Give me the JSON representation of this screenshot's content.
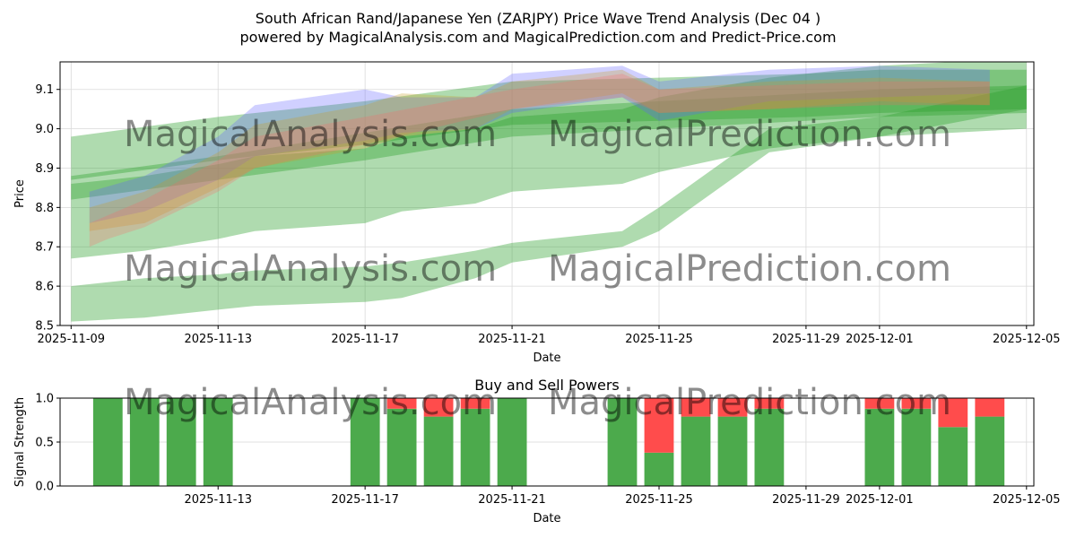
{
  "title_line1": "South African Rand/Japanese Yen (ZARJPY) Price Wave Trend Analysis (Dec 04 )",
  "title_line2": "powered by MagicalAnalysis.com and MagicalPrediction.com and Predict-Price.com",
  "watermarks": [
    "MagicalAnalysis.com",
    "MagicalPrediction.com",
    "MagicalAnalysis.com",
    "MagicalPrediction.com",
    "MagicalAnalysis.com",
    "MagicalPrediction.com"
  ],
  "colors": {
    "green_band": "#2ca02c",
    "blue_band": "#6464ff",
    "orange_band": "#c8a028",
    "red_band": "#ff6464",
    "buy": "#4caa4c",
    "sell": "#ff4c4c",
    "grid": "#d9d9d9"
  },
  "chart_data": [
    {
      "type": "area",
      "title": "",
      "xlabel": "Date",
      "ylabel": "Price",
      "xlim": [
        -0.3,
        26.2
      ],
      "ylim": [
        8.5,
        9.17
      ],
      "xticks": [
        {
          "pos": 0,
          "label": "2025-11-09"
        },
        {
          "pos": 4,
          "label": "2025-11-13"
        },
        {
          "pos": 8,
          "label": "2025-11-17"
        },
        {
          "pos": 12,
          "label": "2025-11-21"
        },
        {
          "pos": 16,
          "label": "2025-11-25"
        },
        {
          "pos": 20,
          "label": "2025-11-29"
        },
        {
          "pos": 22,
          "label": "2025-12-01"
        },
        {
          "pos": 26,
          "label": "2025-12-05"
        }
      ],
      "yticks": [
        {
          "value": 8.5,
          "label": "8.5"
        },
        {
          "value": 8.6,
          "label": "8.6"
        },
        {
          "value": 8.7,
          "label": "8.7"
        },
        {
          "value": 8.8,
          "label": "8.8"
        },
        {
          "value": 8.9,
          "label": "8.9"
        },
        {
          "value": 9.0,
          "label": "9.0"
        },
        {
          "value": 9.1,
          "label": "9.1"
        }
      ],
      "grid": true,
      "bands": [
        {
          "color": "green",
          "opacity": 0.38,
          "x": [
            0,
            2,
            4,
            5,
            8,
            9,
            11,
            12,
            15,
            16,
            19,
            22,
            26
          ],
          "lower": [
            8.51,
            8.52,
            8.54,
            8.55,
            8.56,
            8.57,
            8.62,
            8.66,
            8.7,
            8.74,
            8.94,
            8.98,
            9.05
          ],
          "upper": [
            8.6,
            8.62,
            8.63,
            8.64,
            8.65,
            8.66,
            8.69,
            8.71,
            8.74,
            8.8,
            9.0,
            9.03,
            9.11
          ]
        },
        {
          "color": "green",
          "opacity": 0.38,
          "x": [
            0,
            2,
            4,
            5,
            8,
            9,
            11,
            12,
            15,
            16,
            19,
            22,
            26
          ],
          "lower": [
            8.67,
            8.69,
            8.72,
            8.74,
            8.76,
            8.79,
            8.81,
            8.84,
            8.86,
            8.89,
            8.95,
            8.98,
            9.0
          ],
          "upper": [
            8.86,
            8.88,
            8.91,
            8.93,
            8.95,
            8.98,
            9.0,
            9.03,
            9.05,
            9.08,
            9.13,
            9.16,
            9.18
          ]
        },
        {
          "color": "green",
          "opacity": 0.38,
          "x": [
            0,
            4,
            8,
            12,
            16,
            20,
            22,
            26
          ],
          "lower": [
            8.87,
            8.92,
            8.96,
            9.01,
            9.02,
            9.03,
            9.04,
            9.05
          ],
          "upper": [
            8.98,
            9.03,
            9.07,
            9.12,
            9.13,
            9.14,
            9.15,
            9.15
          ]
        },
        {
          "color": "green",
          "opacity": 0.38,
          "x": [
            0,
            4,
            8,
            12,
            16,
            20,
            22,
            26
          ],
          "lower": [
            8.82,
            8.87,
            8.92,
            8.98,
            9.0,
            9.02,
            9.03,
            9.04
          ],
          "upper": [
            8.88,
            8.93,
            8.99,
            9.05,
            9.07,
            9.09,
            9.1,
            9.11
          ]
        },
        {
          "color": "blue",
          "opacity": 0.3,
          "x": [
            0.5,
            2,
            4,
            5,
            8,
            9,
            11,
            12,
            15,
            16,
            19,
            22,
            25
          ],
          "lower": [
            8.76,
            8.79,
            8.87,
            8.93,
            8.97,
            8.99,
            9.0,
            9.04,
            9.08,
            9.02,
            9.07,
            9.08,
            9.09
          ],
          "upper": [
            8.84,
            8.88,
            8.98,
            9.06,
            9.1,
            9.08,
            9.08,
            9.14,
            9.16,
            9.12,
            9.15,
            9.16,
            9.15
          ]
        },
        {
          "color": "orange",
          "opacity": 0.3,
          "x": [
            0.5,
            2,
            4,
            5,
            8,
            9,
            11,
            12,
            15,
            16,
            19,
            22,
            25
          ],
          "lower": [
            8.74,
            8.76,
            8.85,
            8.9,
            8.95,
            8.98,
            9.0,
            9.05,
            9.09,
            9.04,
            9.05,
            9.07,
            9.06
          ],
          "upper": [
            8.8,
            8.84,
            8.94,
            9.01,
            9.06,
            9.09,
            9.08,
            9.12,
            9.15,
            9.1,
            9.12,
            9.13,
            9.12
          ]
        },
        {
          "color": "red",
          "opacity": 0.25,
          "x": [
            0.5,
            1,
            2,
            4,
            5,
            8,
            12,
            15,
            16,
            19,
            22,
            25
          ],
          "lower": [
            8.7,
            8.72,
            8.75,
            8.84,
            8.9,
            8.96,
            9.05,
            9.08,
            9.04,
            9.05,
            9.06,
            9.06
          ],
          "upper": [
            8.76,
            8.78,
            8.82,
            8.92,
            8.98,
            9.03,
            9.1,
            9.14,
            9.1,
            9.11,
            9.12,
            9.12
          ]
        }
      ]
    },
    {
      "type": "bar",
      "title": "Buy and Sell Powers",
      "xlabel": "Date",
      "ylabel": "Signal Strength",
      "xlim": [
        -0.3,
        26.2
      ],
      "ylim": [
        0,
        1.0
      ],
      "xticks": [
        {
          "pos": 4,
          "label": "2025-11-13"
        },
        {
          "pos": 8,
          "label": "2025-11-17"
        },
        {
          "pos": 12,
          "label": "2025-11-21"
        },
        {
          "pos": 16,
          "label": "2025-11-25"
        },
        {
          "pos": 20,
          "label": "2025-11-29"
        },
        {
          "pos": 22,
          "label": "2025-12-01"
        },
        {
          "pos": 26,
          "label": "2025-12-05"
        }
      ],
      "yticks": [
        {
          "value": 0.0,
          "label": "0.0"
        },
        {
          "value": 0.5,
          "label": "0.5"
        },
        {
          "value": 1.0,
          "label": "1.0"
        }
      ],
      "grid": true,
      "series": [
        {
          "name": "Buy",
          "color": "#4caa4c",
          "x": [
            1,
            2,
            3,
            4,
            8,
            9,
            10,
            11,
            12,
            15,
            16,
            17,
            18,
            19,
            22,
            23,
            24,
            25
          ],
          "values": [
            1.0,
            1.0,
            1.0,
            1.0,
            1.0,
            0.88,
            0.79,
            0.88,
            1.0,
            1.0,
            0.38,
            0.79,
            0.79,
            0.88,
            0.88,
            0.88,
            0.67,
            0.79
          ]
        },
        {
          "name": "Sell",
          "color": "#ff4c4c",
          "x": [
            1,
            2,
            3,
            4,
            8,
            9,
            10,
            11,
            12,
            15,
            16,
            17,
            18,
            19,
            22,
            23,
            24,
            25
          ],
          "values": [
            0.0,
            0.0,
            0.0,
            0.0,
            0.0,
            0.12,
            0.21,
            0.12,
            0.0,
            0.0,
            0.62,
            0.21,
            0.21,
            0.12,
            0.12,
            0.12,
            0.33,
            0.21
          ]
        }
      ]
    }
  ]
}
